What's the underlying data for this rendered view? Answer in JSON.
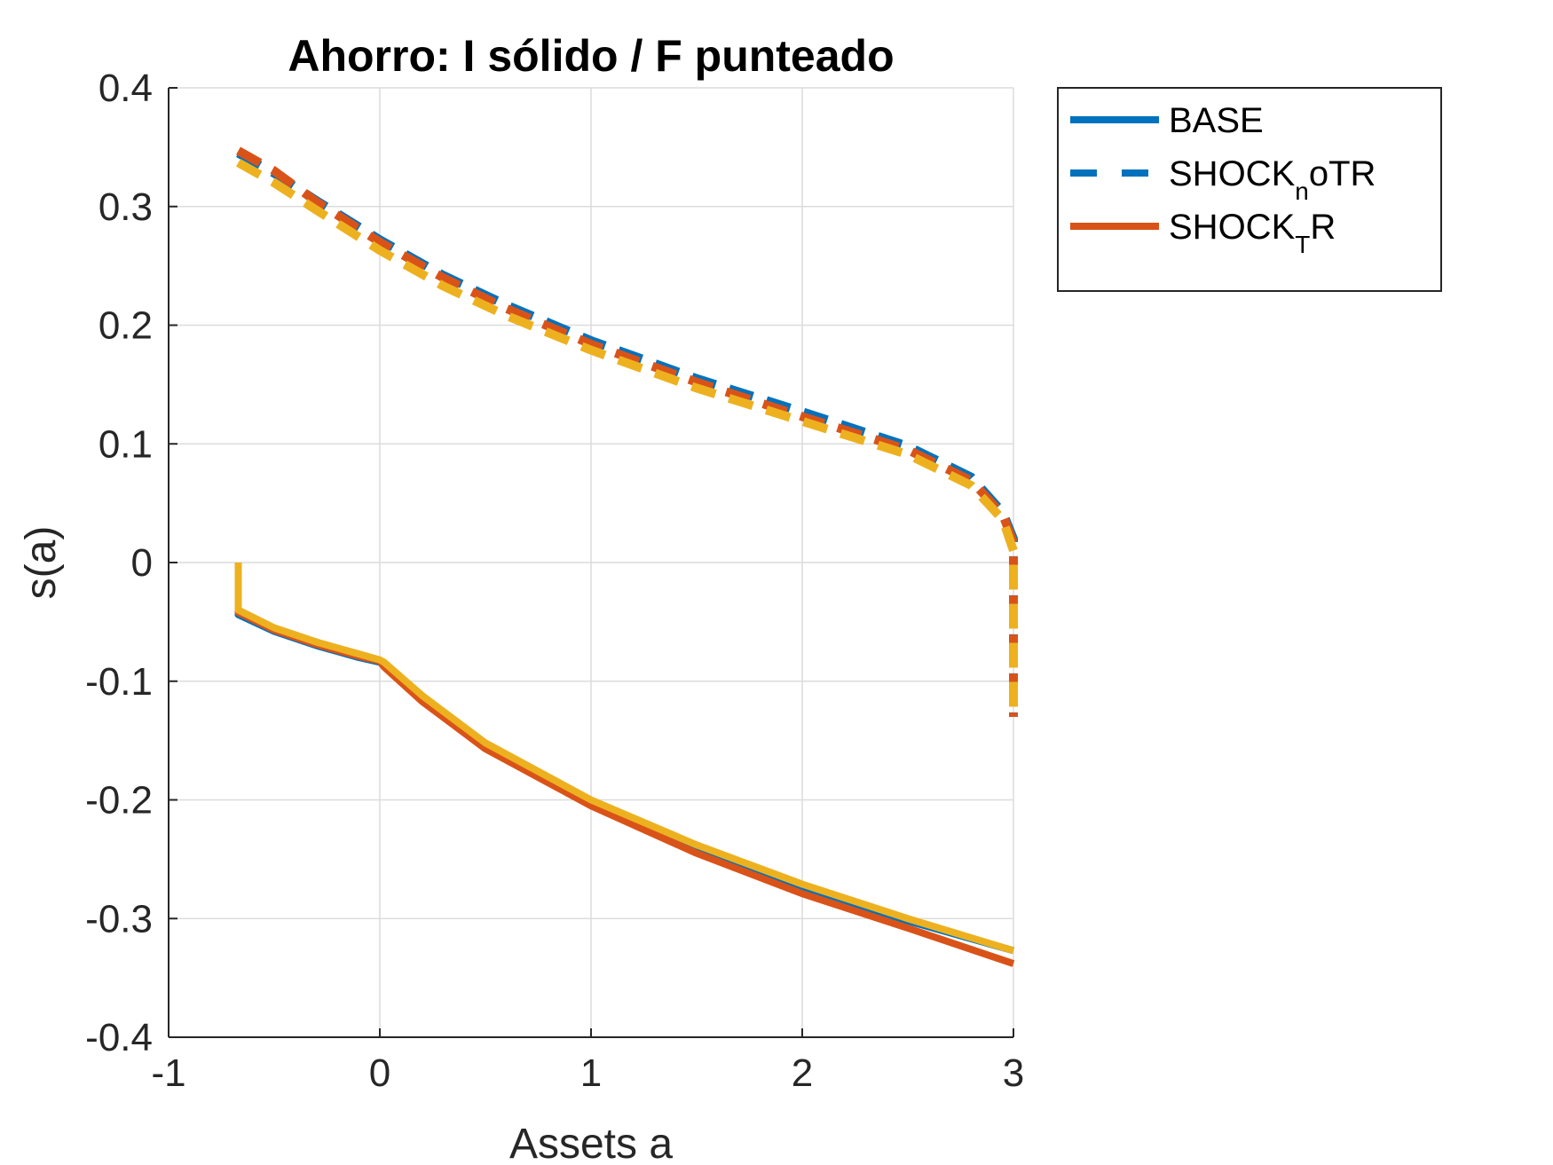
{
  "chart_data": {
    "type": "line",
    "title": "Ahorro: I sólido / F punteado",
    "xlabel": "Assets a",
    "ylabel": "s(a)",
    "xlim": [
      -1,
      3
    ],
    "ylim": [
      -0.4,
      0.4
    ],
    "xticks": [
      -1,
      0,
      1,
      2,
      3
    ],
    "xtick_labels": [
      "-1",
      "0",
      "1",
      "2",
      "3"
    ],
    "yticks": [
      -0.4,
      -0.3,
      -0.2,
      -0.1,
      0,
      0.1,
      0.2,
      0.3,
      0.4
    ],
    "ytick_labels": [
      "-0.4",
      "-0.3",
      "-0.2",
      "-0.1",
      "0",
      "0.1",
      "0.2",
      "0.3",
      "0.4"
    ],
    "grid": true,
    "legend": {
      "placement": "outside-top-right",
      "entries": [
        {
          "main": "BASE",
          "sub": "",
          "tail": "",
          "color": "#0072BD",
          "style": "solid"
        },
        {
          "main": "SHOCK",
          "sub": "n",
          "tail": "oTR",
          "color": "#0072BD",
          "style": "dashed"
        },
        {
          "main": "SHOCK",
          "sub": "T",
          "tail": "R",
          "color": "#D95319",
          "style": "solid"
        }
      ]
    },
    "series": [
      {
        "legend_index": 0,
        "color": "#0072BD",
        "style": "solid",
        "group": "I",
        "x": [
          -0.67,
          -0.67,
          -0.5,
          -0.3,
          -0.1,
          0,
          0.02,
          0.2,
          0.5,
          1,
          1.5,
          2,
          2.5,
          3,
          3
        ],
        "y": [
          0,
          -0.044,
          -0.058,
          -0.07,
          -0.08,
          -0.084,
          -0.087,
          -0.115,
          -0.155,
          -0.203,
          -0.242,
          -0.275,
          -0.302,
          -0.327,
          -0.327
        ]
      },
      {
        "legend_index": 1,
        "color": "#0072BD",
        "style": "dashed",
        "group": "F",
        "x": [
          -0.67,
          -0.5,
          -0.3,
          0,
          0.3,
          0.6,
          1,
          1.5,
          2,
          2.5,
          2.8,
          2.95,
          3,
          3
        ],
        "y": [
          0.345,
          0.328,
          0.305,
          0.272,
          0.242,
          0.217,
          0.187,
          0.155,
          0.127,
          0.098,
          0.072,
          0.042,
          0.02,
          -0.13
        ]
      },
      {
        "legend_index": 2,
        "color": "#D95319",
        "style": "solid",
        "group": "I",
        "x": [
          -0.67,
          -0.67,
          -0.5,
          -0.3,
          -0.1,
          0,
          0.02,
          0.2,
          0.5,
          1,
          1.5,
          2,
          2.5,
          3,
          3
        ],
        "y": [
          0,
          -0.042,
          -0.057,
          -0.069,
          -0.079,
          -0.083,
          -0.088,
          -0.117,
          -0.157,
          -0.205,
          -0.245,
          -0.279,
          -0.308,
          -0.338,
          -0.338
        ]
      },
      {
        "legend_index": 2,
        "color": "#D95319",
        "style": "dashed",
        "group": "F",
        "x": [
          -0.67,
          -0.5,
          -0.3,
          0,
          0.3,
          0.6,
          1,
          1.5,
          2,
          2.5,
          2.8,
          2.95,
          3,
          3
        ],
        "y": [
          0.347,
          0.33,
          0.304,
          0.27,
          0.24,
          0.214,
          0.184,
          0.152,
          0.123,
          0.095,
          0.069,
          0.04,
          0.017,
          -0.13
        ]
      },
      {
        "legend_index": null,
        "color": "#EDB120",
        "style": "solid",
        "group": "I",
        "x": [
          -0.67,
          -0.67,
          -0.5,
          -0.3,
          -0.1,
          0,
          0.02,
          0.2,
          0.5,
          1,
          1.5,
          2,
          2.5,
          3,
          3
        ],
        "y": [
          0,
          -0.04,
          -0.055,
          -0.067,
          -0.077,
          -0.082,
          -0.084,
          -0.112,
          -0.152,
          -0.2,
          -0.238,
          -0.271,
          -0.3,
          -0.327,
          -0.327
        ]
      },
      {
        "legend_index": null,
        "color": "#EDB120",
        "style": "dashed",
        "group": "F",
        "x": [
          -0.67,
          -0.5,
          -0.3,
          0,
          0.3,
          0.6,
          1,
          1.5,
          2,
          2.5,
          2.8,
          2.95,
          3,
          3
        ],
        "y": [
          0.337,
          0.32,
          0.297,
          0.263,
          0.233,
          0.208,
          0.179,
          0.147,
          0.119,
          0.091,
          0.065,
          0.036,
          0.01,
          -0.125
        ]
      }
    ]
  }
}
